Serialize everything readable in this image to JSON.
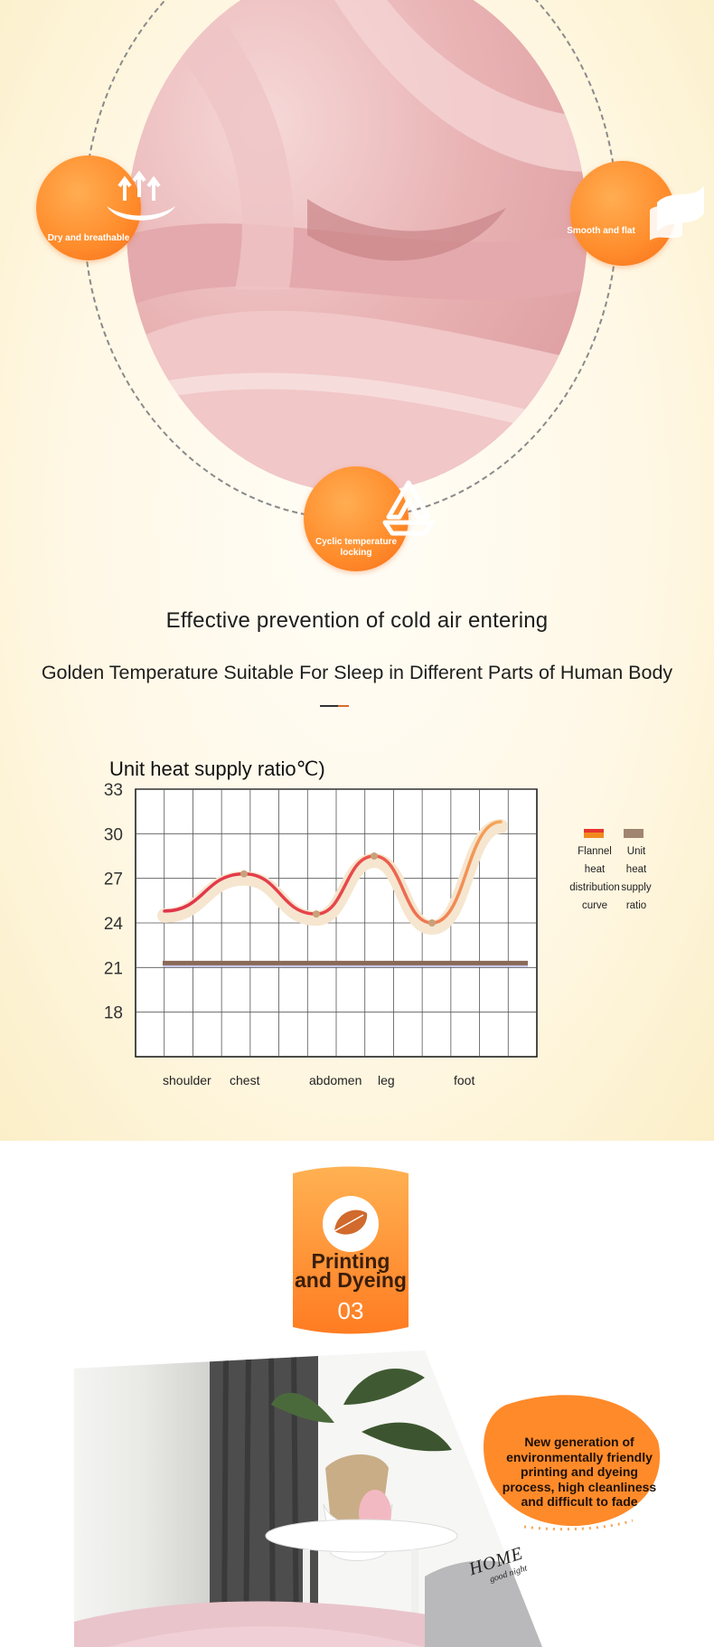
{
  "features": {
    "badge_left": "Dry and breathable",
    "badge_right": "Smooth and flat",
    "badge_bottom": "Cyclic temperature locking"
  },
  "headline": "Effective prevention of cold air entering",
  "subheadline": "Golden Temperature Suitable For Sleep in Different Parts of Human Body",
  "chart_data": {
    "type": "line",
    "title": "Unit heat supply ratio℃)",
    "ylim": [
      15,
      33
    ],
    "yticks": [
      33,
      30,
      27,
      24,
      21,
      18
    ],
    "x_labels": [
      "shoulder",
      "chest",
      "abdomen",
      "leg",
      "foot"
    ],
    "grid": true,
    "series": [
      {
        "name": "Flannel heat distribution curve",
        "color": "#e03a3a",
        "points": [
          [
            0.0,
            24.8
          ],
          [
            0.22,
            27.3
          ],
          [
            0.42,
            24.6
          ],
          [
            0.58,
            28.5
          ],
          [
            0.74,
            24.0
          ],
          [
            0.93,
            30.8
          ]
        ]
      },
      {
        "name": "Unit heat supply ratio",
        "color": "#8a6a55",
        "points": [
          [
            0.0,
            21.3
          ],
          [
            1.0,
            21.3
          ]
        ]
      }
    ],
    "legend": {
      "position": "right",
      "flannel": [
        "Flannel",
        "heat",
        "distribution",
        "curve"
      ],
      "unit": [
        "Unit",
        "heat",
        "supply",
        "ratio"
      ]
    }
  },
  "process_badge": {
    "title_line1": "Printing",
    "title_line2": "and Dyeing",
    "number": "03"
  },
  "process_description": "New generation of environmentally friendly printing and dyeing process, high cleanliness and difficult to fade",
  "pillow_text": {
    "line1": "HOME",
    "line2": "good night"
  },
  "colors": {
    "orange": "#ff8c2b",
    "fleece_pink": "#e6aeb0",
    "curve_red": "#e03a3a",
    "curve_orange": "#f29a4a",
    "supply_line": "#8a6a55"
  }
}
